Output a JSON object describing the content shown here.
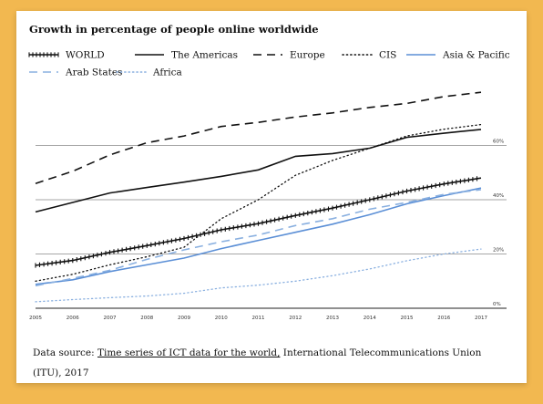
{
  "chart_data": {
    "type": "line",
    "title": "Growth in percentage of people online worldwide",
    "xlabel": "",
    "ylabel": "",
    "x": [
      "2005",
      "2006",
      "2007",
      "2008",
      "2009",
      "2010",
      "2011",
      "2012",
      "2013",
      "2014",
      "2015",
      "2016",
      "2017"
    ],
    "y_ticks": [
      "0%",
      "20%",
      "40%",
      "60%"
    ],
    "ylim": [
      0,
      80
    ],
    "grid": "horizontal",
    "legend_position": "top",
    "series": [
      {
        "name": "WORLD",
        "style": "tick",
        "color": "#111111",
        "values": [
          15.8,
          17.6,
          20.6,
          23.1,
          25.7,
          28.9,
          31.2,
          34.2,
          36.9,
          40.0,
          43.2,
          45.8,
          48.0
        ]
      },
      {
        "name": "The Americas",
        "style": "solid",
        "color": "#111111",
        "values": [
          35.5,
          39.0,
          42.5,
          44.5,
          46.5,
          48.6,
          51.0,
          56.0,
          57.0,
          59.0,
          63.0,
          64.5,
          65.9
        ]
      },
      {
        "name": "Europe",
        "style": "dashed",
        "color": "#111111",
        "values": [
          46.0,
          50.5,
          56.5,
          61.0,
          63.5,
          67.0,
          68.5,
          70.5,
          72.0,
          74.0,
          75.5,
          78.0,
          79.6
        ]
      },
      {
        "name": "CIS",
        "style": "dotted",
        "color": "#111111",
        "values": [
          10.0,
          12.5,
          16.0,
          19.0,
          22.5,
          33.0,
          40.0,
          49.0,
          54.5,
          59.0,
          63.5,
          66.0,
          67.7
        ]
      },
      {
        "name": "Asia & Pacific",
        "style": "solid",
        "color": "#5b8fd6",
        "values": [
          8.8,
          10.5,
          13.5,
          16.0,
          18.5,
          22.0,
          25.0,
          28.0,
          31.0,
          34.5,
          38.5,
          41.5,
          44.3
        ]
      },
      {
        "name": "Arab States",
        "style": "dashed",
        "color": "#8ab0e0",
        "values": [
          8.3,
          11.0,
          14.0,
          18.0,
          21.5,
          24.5,
          27.0,
          30.5,
          33.0,
          36.5,
          39.0,
          42.0,
          43.7
        ]
      },
      {
        "name": "Africa",
        "style": "dotted",
        "color": "#8ab0e0",
        "values": [
          2.4,
          3.2,
          3.9,
          4.5,
          5.5,
          7.5,
          8.5,
          10.0,
          12.0,
          14.5,
          17.5,
          20.0,
          21.8
        ]
      }
    ]
  },
  "source": {
    "prefix": "Data source: ",
    "link": "Time series of ICT data for the world,",
    "suffix": " International Telecommunications Union (ITU), 2017"
  }
}
